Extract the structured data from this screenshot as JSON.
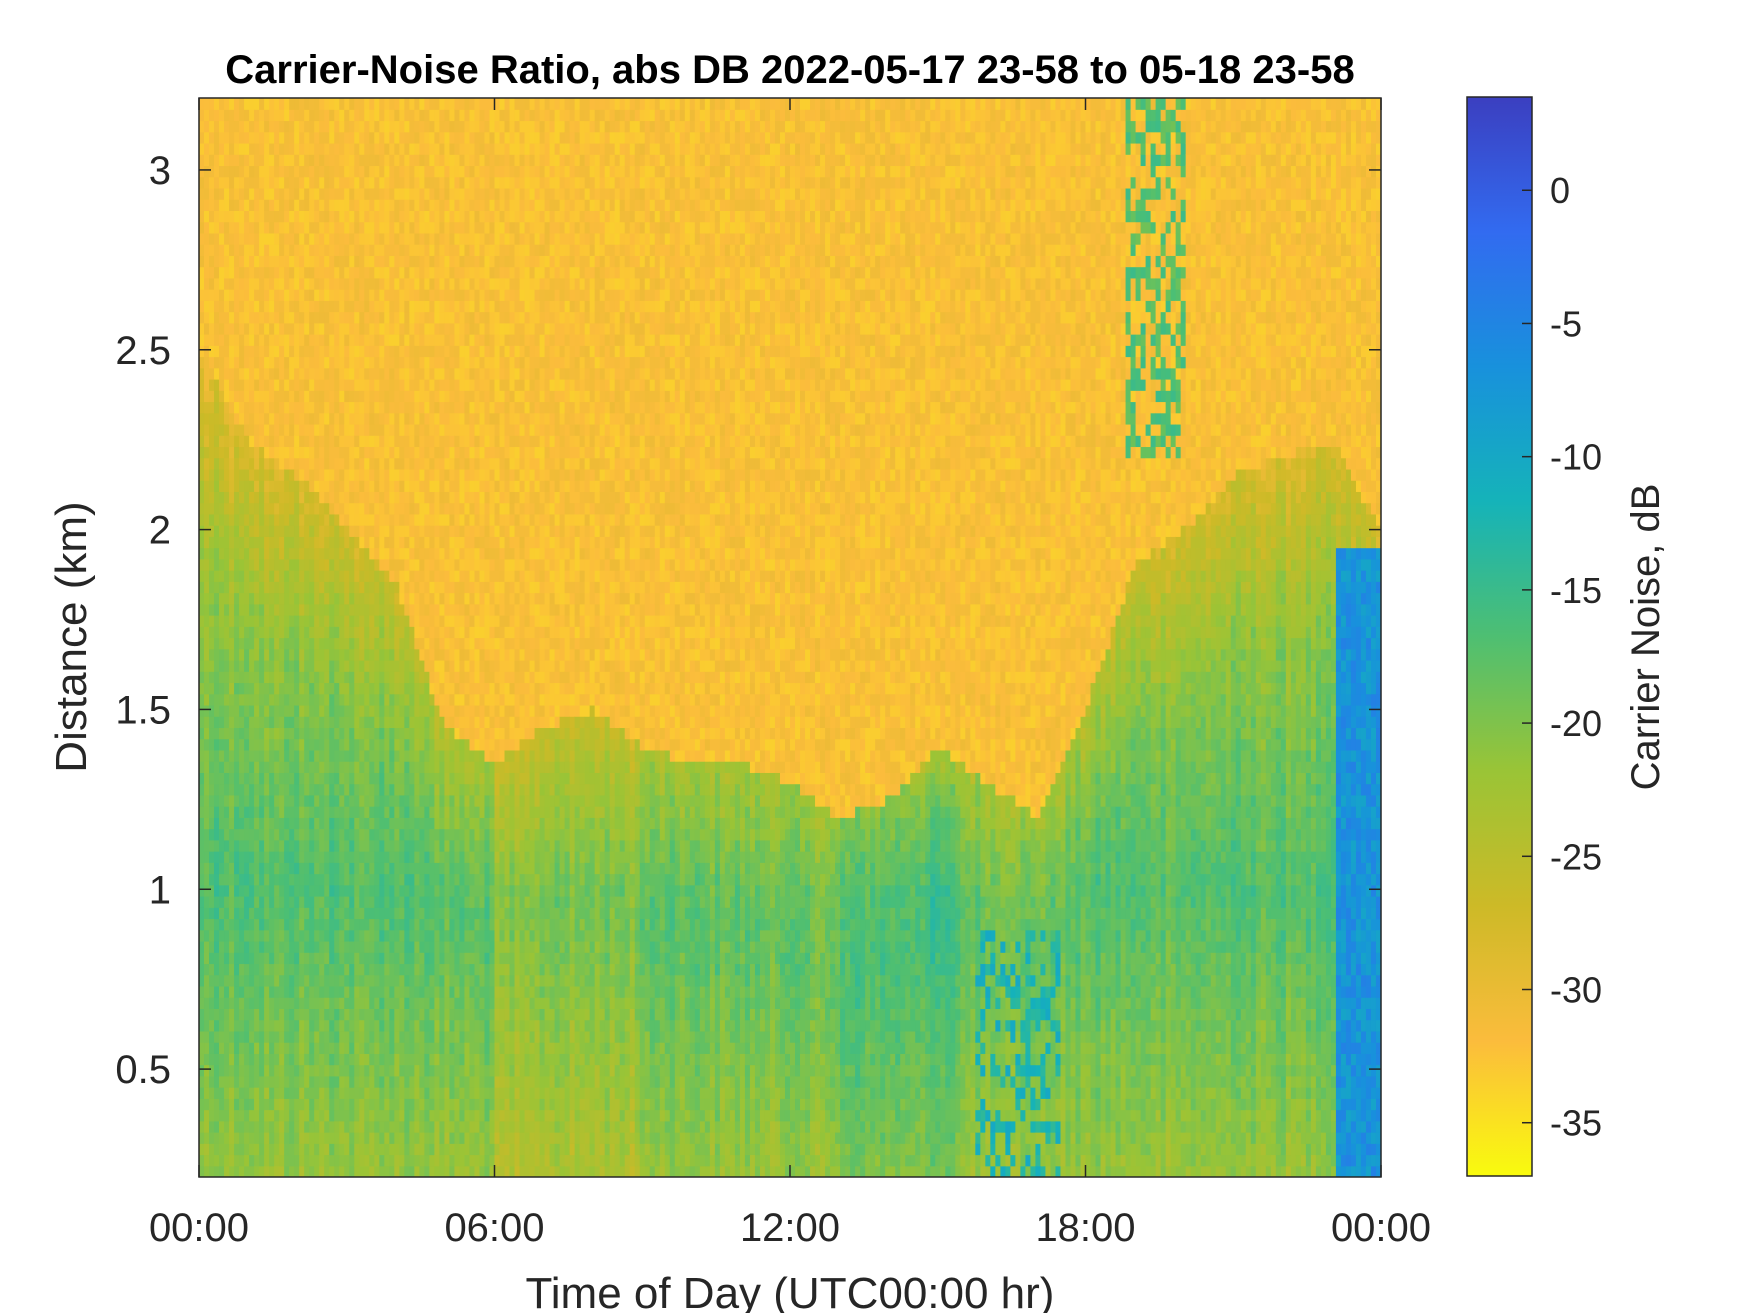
{
  "chart_data": {
    "type": "heatmap",
    "title": "Carrier-Noise Ratio, abs DB 2022-05-17 23-58 to 05-18 23-58",
    "xlabel": "Time of Day (UTC00:00 hr)",
    "ylabel": "Distance (km)",
    "xlim_hours": [
      0,
      24
    ],
    "ylim": [
      0.2,
      3.2
    ],
    "x_ticks": [
      {
        "value": 0,
        "label": "00:00"
      },
      {
        "value": 6,
        "label": "06:00"
      },
      {
        "value": 12,
        "label": "12:00"
      },
      {
        "value": 18,
        "label": "18:00"
      },
      {
        "value": 24,
        "label": "00:00"
      }
    ],
    "y_ticks": [
      {
        "value": 0.5,
        "label": "0.5"
      },
      {
        "value": 1,
        "label": "1"
      },
      {
        "value": 1.5,
        "label": "1.5"
      },
      {
        "value": 2,
        "label": "2"
      },
      {
        "value": 2.5,
        "label": "2.5"
      },
      {
        "value": 3,
        "label": "3"
      }
    ],
    "colorbar": {
      "label": "Carrier Noise, dB",
      "range": [
        -37,
        3.5
      ],
      "ticks": [
        {
          "value": 0,
          "label": "0"
        },
        {
          "value": -5,
          "label": "-5"
        },
        {
          "value": -10,
          "label": "-10"
        },
        {
          "value": -15,
          "label": "-15"
        },
        {
          "value": -20,
          "label": "-20"
        },
        {
          "value": -25,
          "label": "-25"
        },
        {
          "value": -30,
          "label": "-30"
        },
        {
          "value": -35,
          "label": "-35"
        }
      ],
      "colormap": "parula-reversed",
      "colors": [
        "#f9fb0e",
        "#fbbc3c",
        "#cdba27",
        "#9ac436",
        "#4ebf72",
        "#15b3b9",
        "#1891dc",
        "#326bf0",
        "#3b3fc0"
      ]
    },
    "structure": {
      "noise_floor_dB": -32,
      "boundary_layer_top_km": [
        {
          "t": 0,
          "h": 2.5
        },
        {
          "t": 1,
          "h": 2.25
        },
        {
          "t": 2,
          "h": 2.15
        },
        {
          "t": 3,
          "h": 2.0
        },
        {
          "t": 4,
          "h": 1.85
        },
        {
          "t": 5,
          "h": 1.45
        },
        {
          "t": 6,
          "h": 1.35
        },
        {
          "t": 7,
          "h": 1.45
        },
        {
          "t": 8,
          "h": 1.5
        },
        {
          "t": 9,
          "h": 1.4
        },
        {
          "t": 10,
          "h": 1.35
        },
        {
          "t": 11,
          "h": 1.35
        },
        {
          "t": 12,
          "h": 1.3
        },
        {
          "t": 13,
          "h": 1.2
        },
        {
          "t": 14,
          "h": 1.25
        },
        {
          "t": 15,
          "h": 1.4
        },
        {
          "t": 16,
          "h": 1.3
        },
        {
          "t": 17,
          "h": 1.2
        },
        {
          "t": 18,
          "h": 1.5
        },
        {
          "t": 19,
          "h": 1.9
        },
        {
          "t": 20,
          "h": 2.0
        },
        {
          "t": 21,
          "h": 2.15
        },
        {
          "t": 22,
          "h": 2.2
        },
        {
          "t": 23,
          "h": 2.25
        },
        {
          "t": 24,
          "h": 2.0
        }
      ],
      "strong_signal_region": {
        "t_start": 23.1,
        "t_end": 24,
        "h_top": 1.95,
        "dB": -7
      }
    }
  }
}
